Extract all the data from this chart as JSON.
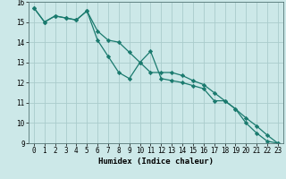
{
  "xlabel": "Humidex (Indice chaleur)",
  "ylabel": "",
  "x_values": [
    0,
    1,
    2,
    3,
    4,
    5,
    6,
    7,
    8,
    9,
    10,
    11,
    12,
    13,
    14,
    15,
    16,
    17,
    18,
    19,
    20,
    21,
    22,
    23
  ],
  "line1_y": [
    15.7,
    15.0,
    15.3,
    15.2,
    15.1,
    15.55,
    14.1,
    13.3,
    12.5,
    12.2,
    13.0,
    13.55,
    12.2,
    12.1,
    12.0,
    11.85,
    11.7,
    11.1,
    11.1,
    10.7,
    10.0,
    9.5,
    9.1,
    9.0
  ],
  "line2_y": [
    15.7,
    15.0,
    15.3,
    15.2,
    15.1,
    15.55,
    14.55,
    14.1,
    14.0,
    13.5,
    13.0,
    12.5,
    12.5,
    12.5,
    12.35,
    12.1,
    11.9,
    11.5,
    11.1,
    10.7,
    10.25,
    9.85,
    9.4,
    9.0
  ],
  "ylim": [
    9,
    16
  ],
  "xlim_min": -0.5,
  "xlim_max": 23.5,
  "yticks": [
    9,
    10,
    11,
    12,
    13,
    14,
    15,
    16
  ],
  "xticks": [
    0,
    1,
    2,
    3,
    4,
    5,
    6,
    7,
    8,
    9,
    10,
    11,
    12,
    13,
    14,
    15,
    16,
    17,
    18,
    19,
    20,
    21,
    22,
    23
  ],
  "line_color": "#1a7a6e",
  "bg_color": "#cce8e8",
  "grid_color": "#aacccc",
  "marker": "D",
  "marker_size": 2.2,
  "line_width": 0.9,
  "xlabel_fontsize": 6.5,
  "tick_fontsize": 5.5
}
